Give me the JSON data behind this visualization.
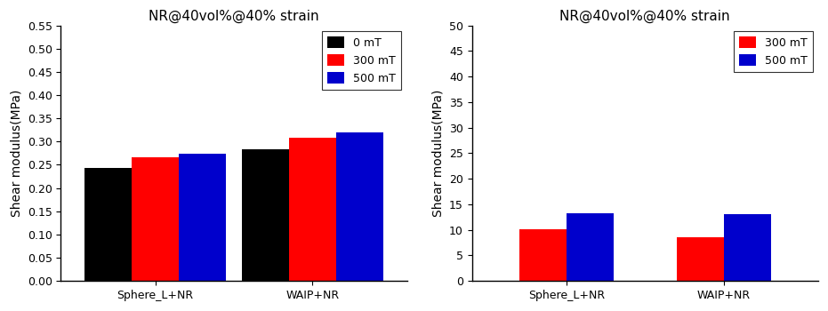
{
  "left_chart": {
    "title": "NR@40vol%@40% strain",
    "ylabel": "Shear modulus(MPa)",
    "categories": [
      "Sphere_L+NR",
      "WAIP+NR"
    ],
    "series": [
      {
        "label": "0 mT",
        "color": "#000000",
        "values": [
          0.243,
          0.283
        ]
      },
      {
        "label": "300 mT",
        "color": "#ff0000",
        "values": [
          0.267,
          0.308
        ]
      },
      {
        "label": "500 mT",
        "color": "#0000cc",
        "values": [
          0.274,
          0.32
        ]
      }
    ],
    "ylim": [
      0.0,
      0.55
    ],
    "yticks": [
      0.0,
      0.05,
      0.1,
      0.15,
      0.2,
      0.25,
      0.3,
      0.35,
      0.4,
      0.45,
      0.5,
      0.55
    ]
  },
  "right_chart": {
    "title": "NR@40vol%@40% strain",
    "ylabel": "Shear modulus(MPa)",
    "categories": [
      "Sphere_L+NR",
      "WAIP+NR"
    ],
    "series": [
      {
        "label": "300 mT",
        "color": "#ff0000",
        "values": [
          10.2,
          8.6
        ]
      },
      {
        "label": "500 mT",
        "color": "#0000cc",
        "values": [
          13.2,
          13.0
        ]
      }
    ],
    "ylim": [
      0,
      50
    ],
    "yticks": [
      0,
      5,
      10,
      15,
      20,
      25,
      30,
      35,
      40,
      45,
      50
    ]
  },
  "bar_width": 0.3,
  "title_fontsize": 11,
  "label_fontsize": 10,
  "tick_fontsize": 9,
  "legend_fontsize": 9
}
